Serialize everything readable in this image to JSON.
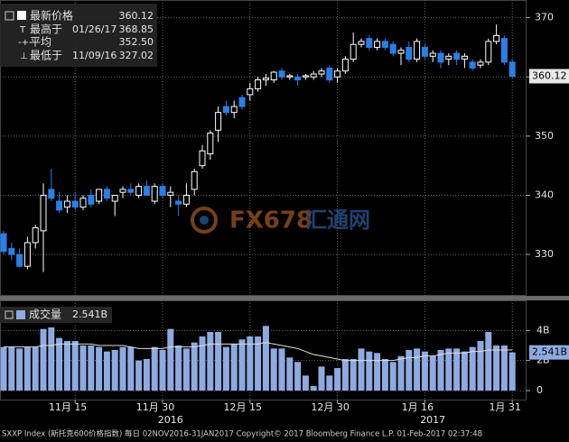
{
  "chart_data": [
    {
      "type": "candlestick",
      "legend": [
        {
          "label": "最新价格",
          "value": 360.12
        },
        {
          "label": "最高于",
          "date": "01/26/17",
          "value": 368.85
        },
        {
          "label": "平均",
          "value": {
            "value": 352.5,
            "label": "352.50"
          }
        },
        {
          "label": "最低于",
          "date": "11/09/16",
          "value": 327.02
        }
      ],
      "categories": [
        null,
        null,
        null,
        null,
        null,
        null,
        null,
        null,
        null,
        "11月 15",
        null,
        null,
        null,
        null,
        null,
        null,
        null,
        null,
        null,
        null,
        "11月 30",
        null,
        null,
        null,
        null,
        null,
        null,
        null,
        null,
        null,
        null,
        "12月 15",
        null,
        null,
        null,
        null,
        null,
        null,
        null,
        null,
        null,
        null,
        "12月 30",
        null,
        null,
        null,
        null,
        null,
        null,
        null,
        null,
        null,
        null,
        "1月 16",
        null,
        null,
        null,
        null,
        null,
        null,
        null,
        null,
        null,
        null,
        "1月 31"
      ],
      "year_labels": [
        null,
        null,
        null,
        null,
        null,
        null,
        null,
        null,
        null,
        null,
        null,
        null,
        null,
        null,
        null,
        null,
        null,
        null,
        null,
        null,
        null,
        "2016",
        null,
        null,
        null,
        null,
        null,
        null,
        null,
        null,
        null,
        null,
        null,
        null,
        null,
        null,
        null,
        null,
        null,
        null,
        null,
        null,
        null,
        null,
        null,
        null,
        null,
        null,
        null,
        null,
        null,
        null,
        null,
        null,
        "2017",
        null,
        null,
        null,
        null,
        null,
        null,
        null,
        null,
        null,
        null
      ],
      "open": [
        333.5,
        331,
        330,
        328,
        332,
        334,
        341,
        339,
        338,
        339,
        338,
        340,
        339,
        341,
        339,
        340.5,
        341,
        340,
        341.5,
        339,
        341.5,
        340,
        339,
        338.5,
        341,
        345,
        347,
        351,
        355,
        354,
        356.5,
        357,
        358,
        359.5,
        359.5,
        361,
        360,
        360,
        360,
        360,
        360.5,
        361.5,
        360,
        361,
        363,
        365.5,
        366.5,
        365,
        366,
        365.5,
        364,
        365,
        363,
        365,
        363.5,
        364,
        363,
        364,
        363,
        362.5,
        362,
        362.5,
        366,
        366.5,
        362.5
      ],
      "high": [
        334,
        332,
        331,
        333,
        335,
        342,
        344.5,
        340.5,
        340,
        340.5,
        340,
        341,
        341,
        341.5,
        340,
        341.5,
        342,
        342,
        342.5,
        342,
        342,
        341.5,
        340,
        342,
        344.5,
        348.5,
        351,
        355,
        356,
        356,
        357,
        359,
        360,
        360.5,
        361,
        361.5,
        360.5,
        360.5,
        360.5,
        361,
        361.5,
        362,
        361.5,
        363.5,
        367.5,
        366.5,
        367,
        366.5,
        366.5,
        366,
        365,
        366,
        366.5,
        365.5,
        364.5,
        364.5,
        364,
        364.5,
        364,
        363,
        363,
        366.5,
        368.85,
        367,
        363
      ],
      "low": [
        330,
        329,
        327.8,
        327.5,
        331,
        327.02,
        339,
        337,
        337,
        337.5,
        337.5,
        338,
        338.5,
        339,
        336.5,
        339.5,
        340,
        339.5,
        340,
        338.5,
        339.5,
        338,
        336.5,
        338,
        340,
        344.5,
        346,
        349,
        353.5,
        353,
        354.5,
        356,
        357.5,
        358.5,
        359,
        359.5,
        359.5,
        358.5,
        359.5,
        359.5,
        360,
        359,
        359,
        360.5,
        362.5,
        365,
        364.5,
        364.5,
        364.5,
        363.5,
        362,
        362.5,
        362.5,
        363,
        362.5,
        361.5,
        362,
        362,
        361.5,
        361,
        361.5,
        362,
        365.5,
        362,
        359.8
      ],
      "close": [
        330.5,
        330,
        328,
        332,
        334.5,
        340,
        339.5,
        337.5,
        339,
        338,
        339.5,
        338.5,
        341,
        339.5,
        340,
        341,
        340.5,
        341.5,
        340,
        341.5,
        340,
        340.5,
        338.5,
        340,
        344,
        347.5,
        350.5,
        354,
        354,
        355,
        355,
        358,
        359.5,
        359.8,
        360.8,
        360,
        360.2,
        359.5,
        360.2,
        360.5,
        361,
        359.5,
        361,
        363,
        365.5,
        366,
        365,
        366,
        365,
        364,
        364.5,
        363,
        366,
        363.5,
        364,
        362.5,
        363.5,
        363,
        363.5,
        361.5,
        362.5,
        366,
        367,
        362.5,
        360.12
      ],
      "up_color": "#ffffff",
      "down_color": "#2a7fe6",
      "last_price": 360.12,
      "ylim": [
        323,
        373
      ],
      "yticks": [
        330,
        340,
        350,
        360,
        370
      ],
      "grid": true
    },
    {
      "type": "bar",
      "title": "成交量",
      "values": [
        2.9,
        2.9,
        2.8,
        2.9,
        2.9,
        4.1,
        4.2,
        3.5,
        3.3,
        3.3,
        3.0,
        3.0,
        2.9,
        2.6,
        2.7,
        2.9,
        2.9,
        2.0,
        2.1,
        2.9,
        2.7,
        4.1,
        3.0,
        2.8,
        3.2,
        3.6,
        3.9,
        3.9,
        2.9,
        3.1,
        3.4,
        3.6,
        3.6,
        4.3,
        2.8,
        2.8,
        2.2,
        1.9,
        1.0,
        0.3,
        1.6,
        1.0,
        1.5,
        2.1,
        2.1,
        2.8,
        2.6,
        2.5,
        2.1,
        1.9,
        2.3,
        2.7,
        2.8,
        2.6,
        2.3,
        2.7,
        2.8,
        2.8,
        2.6,
        2.9,
        3.3,
        3.9,
        3.0,
        3.0,
        2.541
      ],
      "moving_average": [
        2.9,
        2.9,
        2.9,
        2.9,
        2.9,
        3.0,
        3.0,
        3.1,
        3.1,
        3.1,
        3.1,
        3.1,
        3.0,
        3.0,
        3.0,
        3.0,
        2.9,
        2.8,
        2.8,
        2.8,
        2.8,
        2.9,
        2.9,
        2.9,
        2.9,
        3.0,
        3.1,
        3.1,
        3.1,
        3.1,
        3.1,
        3.1,
        3.1,
        3.2,
        3.1,
        3.0,
        2.9,
        2.8,
        2.6,
        2.4,
        2.3,
        2.2,
        2.1,
        2.0,
        2.0,
        2.0,
        2.0,
        2.0,
        2.0,
        2.0,
        2.1,
        2.2,
        2.2,
        2.3,
        2.3,
        2.4,
        2.5,
        2.5,
        2.5,
        2.6,
        2.6,
        2.7,
        2.7,
        2.7,
        2.7
      ],
      "color": "#8eaadf",
      "line_color": "#e0e0e0",
      "current": {
        "value": 2.541,
        "label": "2.541B"
      },
      "ylim": [
        0,
        6
      ],
      "yticks": [
        0,
        {
          "value": 2,
          "label": "2B"
        },
        {
          "value": 4,
          "label": "4B"
        }
      ],
      "grid": true
    }
  ],
  "watermark": {
    "brand": "FX678",
    "name": "汇通网"
  },
  "footer": "SXXP Index (斯托克600价格指数) 每日 02NOV2016-31JAN2017 Copyright© 2017 Bloomberg Finance L.P. 01-Feb-2017 02:37:48"
}
